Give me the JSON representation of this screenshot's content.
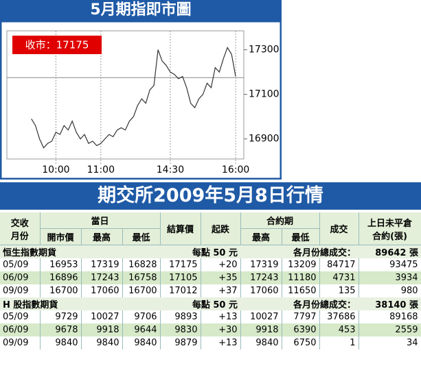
{
  "chart_data": {
    "type": "line",
    "title": "5月期指即市圖",
    "close_label": "收市：17175",
    "close": 17175,
    "color": "#333333",
    "x": [
      0,
      1,
      2,
      3,
      4,
      5,
      6,
      7,
      8,
      9,
      10,
      11,
      12,
      13,
      14,
      15,
      16,
      17,
      18,
      19,
      20,
      21,
      22,
      23,
      24,
      25,
      26,
      27,
      28,
      29,
      30,
      31,
      32,
      33,
      34,
      35,
      36,
      37,
      38,
      39,
      40,
      41,
      42,
      43,
      44,
      45,
      46,
      47,
      48,
      49,
      50
    ],
    "values": [
      16990,
      16960,
      16900,
      16860,
      16880,
      16890,
      16930,
      16920,
      16960,
      16940,
      16980,
      16930,
      16900,
      16920,
      16880,
      16890,
      16870,
      16880,
      16900,
      16920,
      16910,
      16940,
      16950,
      16940,
      16980,
      17000,
      17050,
      17080,
      17060,
      17120,
      17140,
      17300,
      17250,
      17230,
      17200,
      17190,
      17170,
      17180,
      17130,
      17060,
      17040,
      17080,
      17100,
      17150,
      17130,
      17220,
      17200,
      17260,
      17310,
      17280,
      17180
    ],
    "xlim": [
      -6,
      52
    ],
    "ylim": [
      16810,
      17385
    ],
    "yticks": [
      16900,
      17100,
      17300
    ],
    "xticks": [
      {
        "value": 6,
        "label": "10:00"
      },
      {
        "value": 17,
        "label": "11:00"
      },
      {
        "value": 34,
        "label": "14:30"
      },
      {
        "value": 50,
        "label": "16:00"
      }
    ]
  },
  "table": {
    "title": "期交所2009年5月8日行情",
    "header": {
      "month": [
        "交收",
        "月份"
      ],
      "day": "當日",
      "open": "開市價",
      "high": "最高",
      "low": "最低",
      "settle": "結算價",
      "change": "起跌",
      "contract": "合約期",
      "c_high": "最高",
      "c_low": "最低",
      "volume": "成交",
      "oi": [
        "上日未平倉",
        "合約(張)"
      ]
    },
    "sections": [
      {
        "name": "恒生指數期貨",
        "unit": "每點 50 元",
        "total_label": "各月份總成交：",
        "total": "89642 張",
        "rows": [
          [
            "05/09",
            16953,
            17319,
            16828,
            17175,
            "+20",
            17319,
            13209,
            84717,
            93475
          ],
          [
            "06/09",
            16896,
            17243,
            16758,
            17105,
            "+35",
            17243,
            11180,
            4731,
            3934
          ],
          [
            "09/09",
            16700,
            17060,
            16700,
            17012,
            "+37",
            17060,
            11650,
            135,
            980
          ]
        ]
      },
      {
        "name": "H 股指數期貨",
        "unit": "每點 50 元",
        "total_label": "各月份總成交：",
        "total": "38140 張",
        "rows": [
          [
            "05/09",
            9729,
            10027,
            9706,
            9893,
            "+13",
            10027,
            7797,
            37686,
            89168
          ],
          [
            "06/09",
            9678,
            9918,
            9644,
            9830,
            "+30",
            9918,
            6390,
            453,
            2559
          ],
          [
            "09/09",
            9840,
            9840,
            9840,
            9879,
            "+13",
            9840,
            6750,
            1,
            34
          ]
        ]
      }
    ]
  }
}
